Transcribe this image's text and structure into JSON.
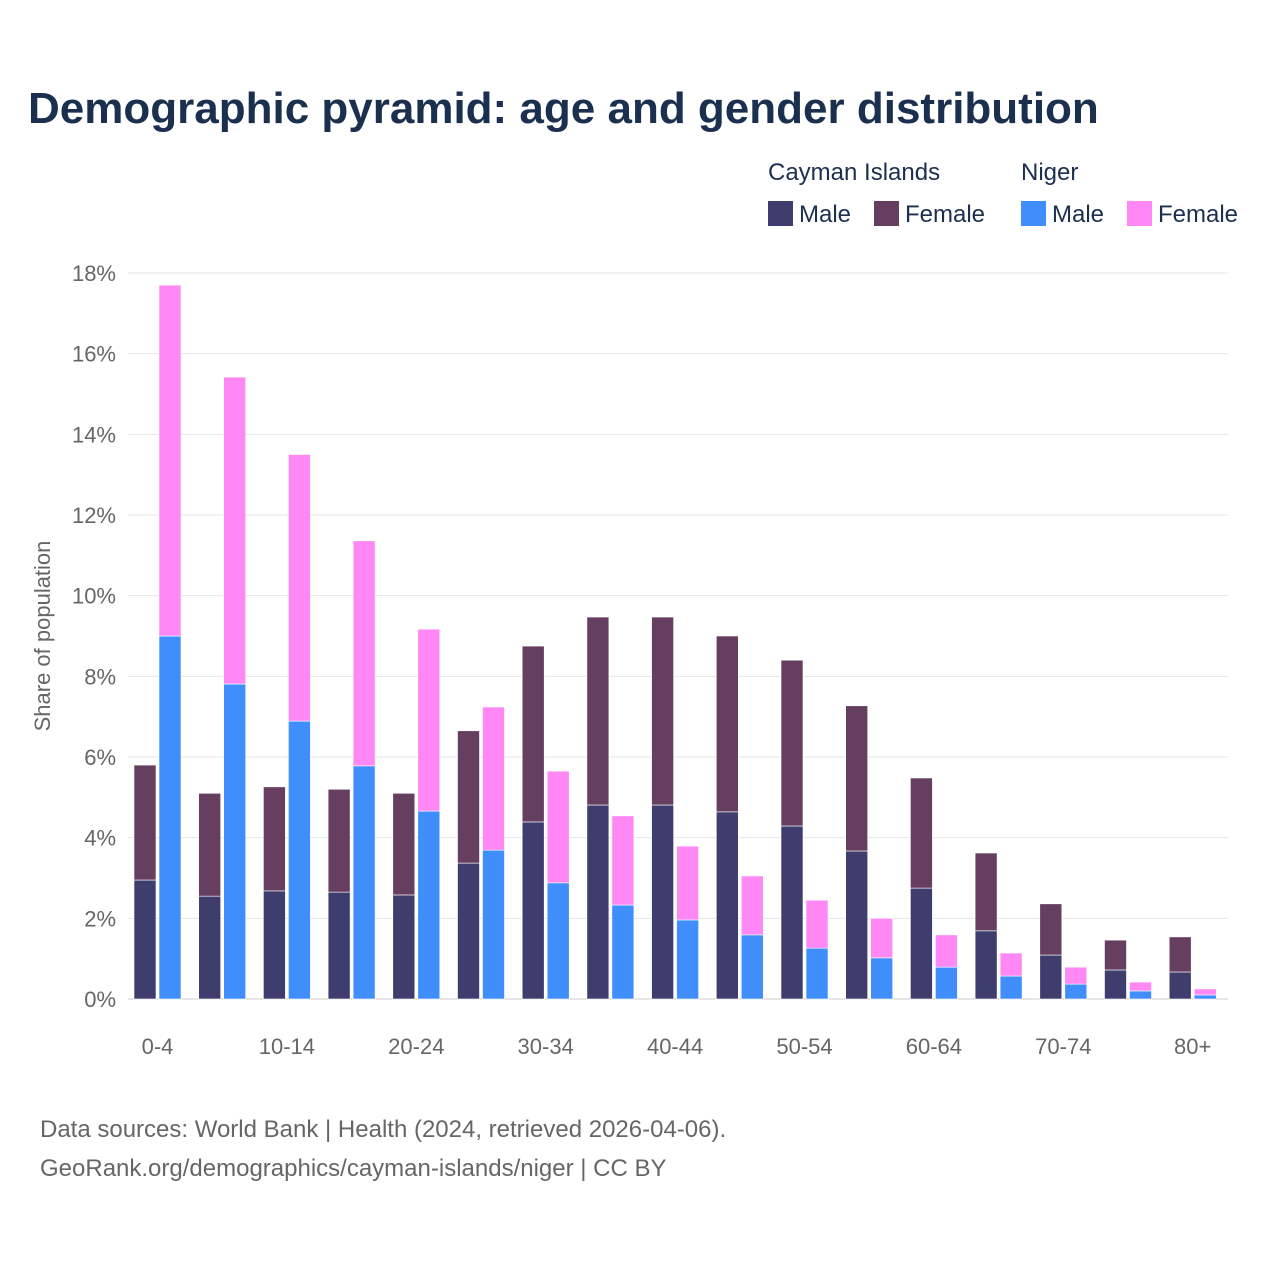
{
  "title": "Demographic pyramid: age and gender distribution",
  "source_line1": "Data sources: World Bank | Health (2024, retrieved 2026-04-06).",
  "source_line2": "GeoRank.org/demographics/cayman-islands/niger | CC BY",
  "chart_data": {
    "type": "bar",
    "stacked": true,
    "title": "Demographic pyramid: age and gender distribution",
    "ylabel": "Share of population",
    "xlabel": "",
    "ylim": [
      0,
      18
    ],
    "yticks": [
      0,
      2,
      4,
      6,
      8,
      10,
      12,
      14,
      16,
      18
    ],
    "ytick_suffix": "%",
    "grid": true,
    "legend_position": "top-right",
    "categories": [
      "0-4",
      "5-9",
      "10-14",
      "15-19",
      "20-24",
      "25-29",
      "30-34",
      "35-39",
      "40-44",
      "45-49",
      "50-54",
      "55-59",
      "60-64",
      "65-69",
      "70-74",
      "75-79",
      "80+"
    ],
    "visible_xticks": [
      "0-4",
      "10-14",
      "20-24",
      "30-34",
      "40-44",
      "50-54",
      "60-64",
      "70-74",
      "80+"
    ],
    "groups": [
      {
        "name": "Cayman Islands",
        "series": [
          {
            "name": "Male",
            "color": "#3f3d6e",
            "values": [
              2.95,
              2.55,
              2.68,
              2.65,
              2.58,
              3.37,
              4.39,
              4.81,
              4.81,
              4.64,
              4.29,
              3.67,
              2.75,
              1.69,
              1.09,
              0.72,
              0.67
            ]
          },
          {
            "name": "Female",
            "color": "#663f60",
            "values": [
              2.85,
              2.55,
              2.58,
              2.55,
              2.52,
              3.28,
              4.36,
              4.66,
              4.66,
              4.36,
              4.11,
              3.6,
              2.73,
              1.93,
              1.27,
              0.74,
              0.87
            ]
          }
        ]
      },
      {
        "name": "Niger",
        "series": [
          {
            "name": "Male",
            "color": "#3f8efc",
            "values": [
              9.0,
              7.81,
              6.89,
              5.78,
              4.66,
              3.69,
              2.88,
              2.33,
              1.96,
              1.59,
              1.26,
              1.02,
              0.79,
              0.57,
              0.37,
              0.2,
              0.1
            ]
          },
          {
            "name": "Female",
            "color": "#ff88f5",
            "values": [
              8.7,
              7.61,
              6.61,
              5.58,
              4.51,
              3.55,
              2.77,
              2.21,
              1.83,
              1.46,
              1.19,
              0.98,
              0.8,
              0.57,
              0.42,
              0.22,
              0.15
            ]
          }
        ]
      }
    ]
  }
}
